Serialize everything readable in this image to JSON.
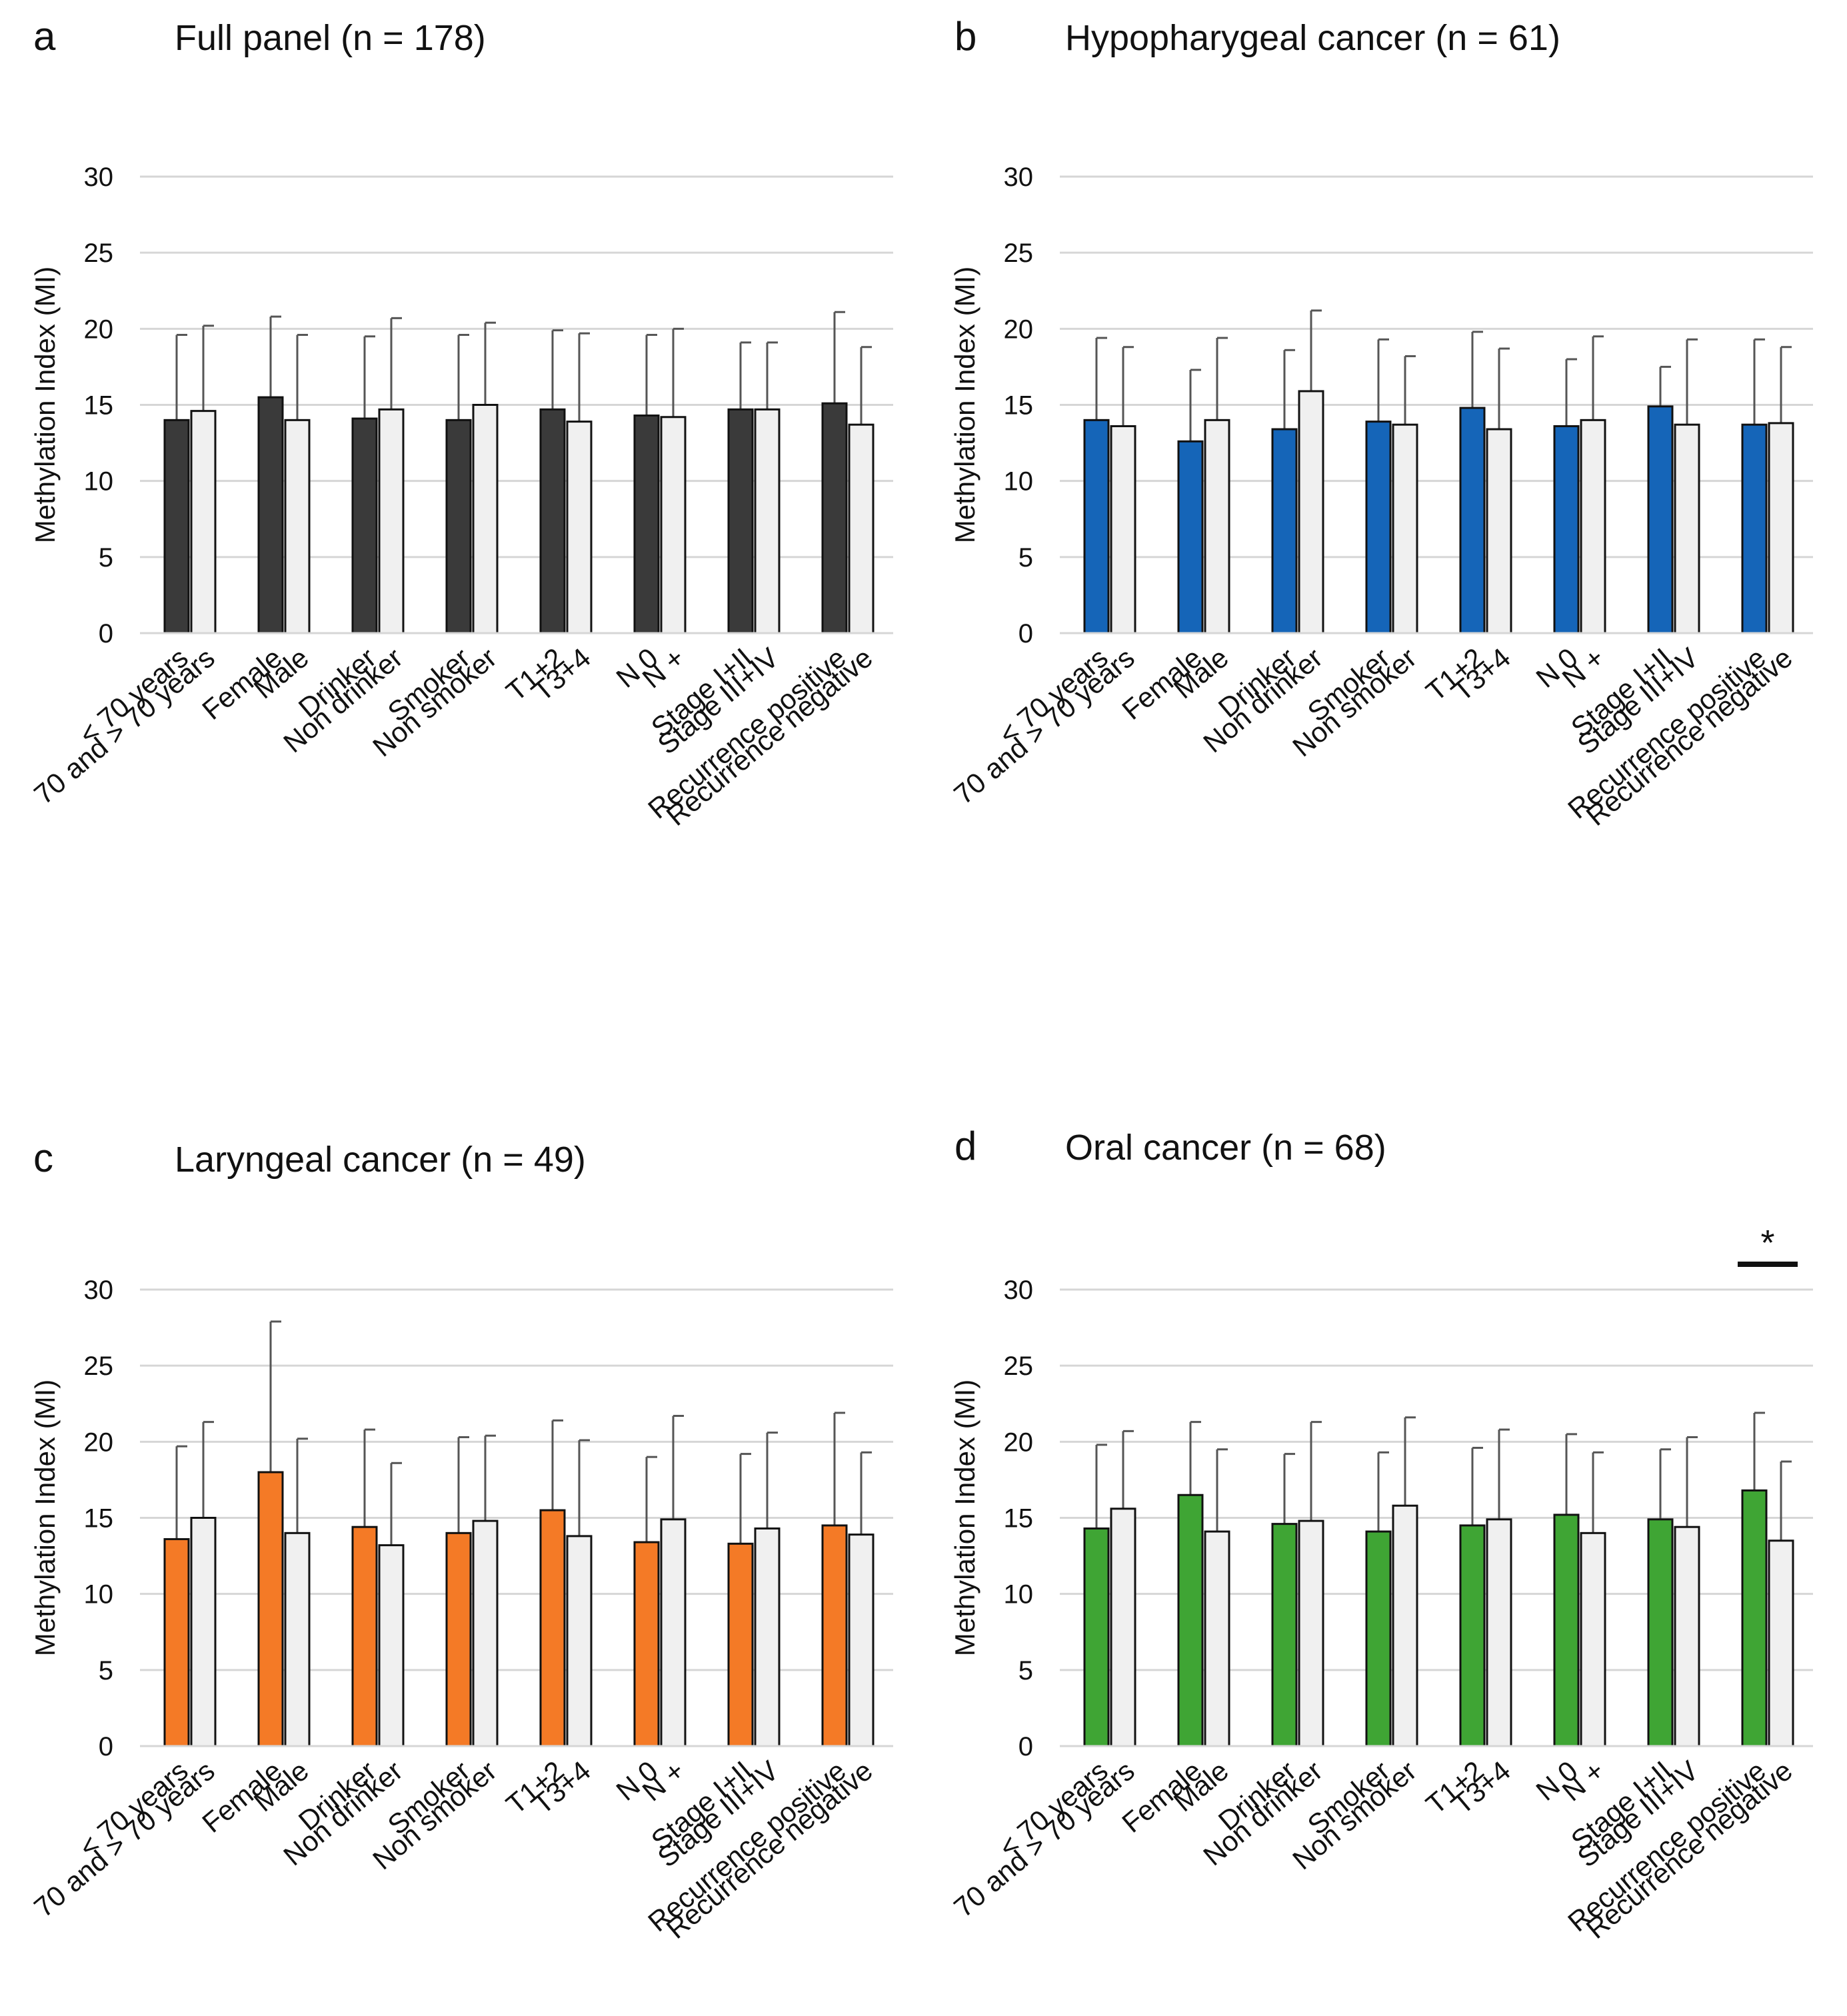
{
  "chart_data": [
    {
      "type": "bar",
      "panel": "a",
      "title": "Full panel (n = 178)",
      "ylabel": "Methylation Index (MI)",
      "xlabel": "",
      "ylim": [
        0,
        30
      ],
      "yticks": [
        0,
        5,
        10,
        15,
        20,
        25,
        30
      ],
      "grid": true,
      "fill_color": "#3a3a3a",
      "categories": [
        "< 70 years",
        "70 and > 70 years",
        "Female",
        "Male",
        "Drinker",
        "Non drinker",
        "Smoker",
        "Non smoker",
        "T1+2",
        "T3+4",
        "N 0",
        "N +",
        "Stage I+II",
        "Stage III+IV",
        "Recurrence positive",
        "Recurrence negative"
      ],
      "values": [
        14.0,
        14.6,
        15.5,
        14.0,
        14.1,
        14.7,
        14.0,
        15.0,
        14.7,
        13.9,
        14.3,
        14.2,
        14.7,
        14.7,
        15.1,
        13.7
      ],
      "errors": [
        5.6,
        5.6,
        5.3,
        5.6,
        5.4,
        6.0,
        5.6,
        5.4,
        5.2,
        5.8,
        5.3,
        5.8,
        4.4,
        4.4,
        6.0,
        5.1
      ],
      "significance": []
    },
    {
      "type": "bar",
      "panel": "b",
      "title": "Hypopharygeal cancer (n = 61)",
      "ylabel": "Methylation Index (MI)",
      "xlabel": "",
      "ylim": [
        0,
        30
      ],
      "yticks": [
        0,
        5,
        10,
        15,
        20,
        25,
        30
      ],
      "grid": true,
      "fill_color": "#1565b8",
      "categories": [
        "< 70 years",
        "70 and > 70 years",
        "Female",
        "Male",
        "Drinker",
        "Non drinker",
        "Smoker",
        "Non smoker",
        "T1+2",
        "T3+4",
        "N 0",
        "N +",
        "Stage I+II",
        "Stage III+IV",
        "Recurrence positive",
        "Recurrence negative"
      ],
      "values": [
        14.0,
        13.6,
        12.6,
        14.0,
        13.4,
        15.9,
        13.9,
        13.7,
        14.8,
        13.4,
        13.6,
        14.0,
        14.9,
        13.7,
        13.7,
        13.8
      ],
      "errors": [
        5.4,
        5.2,
        4.7,
        5.4,
        5.2,
        5.3,
        5.4,
        4.5,
        5.0,
        5.3,
        4.4,
        5.5,
        2.6,
        5.6,
        5.6,
        5.0
      ],
      "significance": []
    },
    {
      "type": "bar",
      "panel": "c",
      "title": "Laryngeal cancer (n = 49)",
      "ylabel": "Methylation Index (MI)",
      "xlabel": "",
      "ylim": [
        0,
        30
      ],
      "yticks": [
        0,
        5,
        10,
        15,
        20,
        25,
        30
      ],
      "grid": true,
      "fill_color": "#f47a26",
      "categories": [
        "< 70 years",
        "70 and > 70 years",
        "Female",
        "Male",
        "Drinker",
        "Non drinker",
        "Smoker",
        "Non smoker",
        "T1+2",
        "T3+4",
        "N 0",
        "N +",
        "Stage I+II",
        "Stage III+IV",
        "Recurrence positive",
        "Recurrence negative"
      ],
      "values": [
        13.6,
        15.0,
        18.0,
        14.0,
        14.4,
        13.2,
        14.0,
        14.8,
        15.5,
        13.8,
        13.4,
        14.9,
        13.3,
        14.3,
        14.5,
        13.9
      ],
      "errors": [
        6.1,
        6.3,
        9.9,
        6.2,
        6.4,
        5.4,
        6.3,
        5.6,
        5.9,
        6.3,
        5.6,
        6.8,
        5.9,
        6.3,
        7.4,
        5.4
      ],
      "significance": []
    },
    {
      "type": "bar",
      "panel": "d",
      "title": "Oral cancer (n = 68)",
      "ylabel": "Methylation Index (MI)",
      "xlabel": "",
      "ylim": [
        0,
        30
      ],
      "yticks": [
        0,
        5,
        10,
        15,
        20,
        25,
        30
      ],
      "grid": true,
      "fill_color": "#3fa534",
      "categories": [
        "< 70 years",
        "70 and > 70 years",
        "Female",
        "Male",
        "Drinker",
        "Non drinker",
        "Smoker",
        "Non smoker",
        "T1+2",
        "T3+4",
        "N 0",
        "N +",
        "Stage I+II",
        "Stage III+IV",
        "Recurrence positive",
        "Recurrence negative"
      ],
      "values": [
        14.3,
        15.6,
        16.5,
        14.1,
        14.6,
        14.8,
        14.1,
        15.8,
        14.5,
        14.9,
        15.2,
        14.0,
        14.9,
        14.4,
        16.8,
        13.5
      ],
      "errors": [
        5.5,
        5.1,
        4.8,
        5.4,
        4.6,
        6.5,
        5.2,
        5.8,
        5.1,
        5.9,
        5.3,
        5.3,
        4.6,
        5.9,
        5.1,
        5.2
      ],
      "significance": [
        {
          "between": [
            14,
            15
          ],
          "label": "*"
        }
      ]
    }
  ]
}
